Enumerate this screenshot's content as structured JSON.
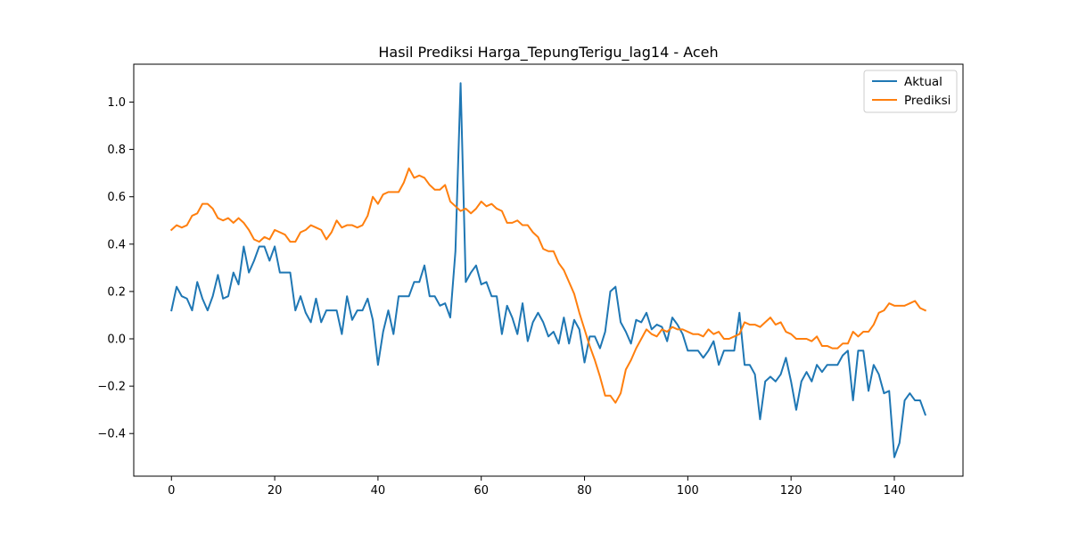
{
  "chart_data": {
    "type": "line",
    "title": "Hasil Prediksi Harga_TepungTerigu_lag14 - Aceh",
    "xlabel": "",
    "ylabel": "",
    "xlim": [
      -7.3,
      153.3
    ],
    "ylim": [
      -0.58,
      1.16
    ],
    "xticks": [
      0,
      20,
      40,
      60,
      80,
      100,
      120,
      140
    ],
    "yticks": [
      -0.4,
      -0.2,
      0.0,
      0.2,
      0.4,
      0.6,
      0.8,
      1.0
    ],
    "ytick_labels": [
      "−0.4",
      "−0.2",
      "0.0",
      "0.2",
      "0.4",
      "0.6",
      "0.8",
      "1.0"
    ],
    "grid": false,
    "legend_position": "top-right",
    "series": [
      {
        "name": "Aktual",
        "color": "#1f77b4",
        "values": [
          0.12,
          0.22,
          0.18,
          0.17,
          0.12,
          0.24,
          0.17,
          0.12,
          0.18,
          0.27,
          0.17,
          0.18,
          0.28,
          0.23,
          0.39,
          0.28,
          0.33,
          0.39,
          0.39,
          0.33,
          0.39,
          0.28,
          0.28,
          0.28,
          0.12,
          0.18,
          0.11,
          0.07,
          0.17,
          0.07,
          0.12,
          0.12,
          0.12,
          0.02,
          0.18,
          0.08,
          0.12,
          0.12,
          0.17,
          0.08,
          -0.11,
          0.03,
          0.12,
          0.02,
          0.18,
          0.18,
          0.18,
          0.24,
          0.24,
          0.31,
          0.18,
          0.18,
          0.14,
          0.15,
          0.09,
          0.37,
          1.08,
          0.24,
          0.28,
          0.31,
          0.23,
          0.24,
          0.18,
          0.18,
          0.02,
          0.14,
          0.09,
          0.02,
          0.15,
          -0.01,
          0.07,
          0.11,
          0.07,
          0.01,
          0.03,
          -0.02,
          0.09,
          -0.02,
          0.08,
          0.04,
          -0.1,
          0.01,
          0.01,
          -0.04,
          0.03,
          0.2,
          0.22,
          0.07,
          0.03,
          -0.02,
          0.08,
          0.07,
          0.11,
          0.04,
          0.06,
          0.05,
          -0.01,
          0.09,
          0.06,
          0.02,
          -0.05,
          -0.05,
          -0.05,
          -0.08,
          -0.05,
          -0.01,
          -0.11,
          -0.05,
          -0.05,
          -0.05,
          0.11,
          -0.11,
          -0.11,
          -0.15,
          -0.34,
          -0.18,
          -0.16,
          -0.18,
          -0.15,
          -0.08,
          -0.18,
          -0.3,
          -0.18,
          -0.14,
          -0.18,
          -0.11,
          -0.14,
          -0.11,
          -0.11,
          -0.11,
          -0.07,
          -0.05,
          -0.26,
          -0.05,
          -0.05,
          -0.22,
          -0.11,
          -0.15,
          -0.23,
          -0.22,
          -0.5,
          -0.44,
          -0.26,
          -0.23,
          -0.26,
          -0.26,
          -0.32
        ]
      },
      {
        "name": "Prediksi",
        "color": "#ff7f0e",
        "values": [
          0.46,
          0.48,
          0.47,
          0.48,
          0.52,
          0.53,
          0.57,
          0.57,
          0.55,
          0.51,
          0.5,
          0.51,
          0.49,
          0.51,
          0.49,
          0.46,
          0.42,
          0.41,
          0.43,
          0.42,
          0.46,
          0.45,
          0.44,
          0.41,
          0.41,
          0.45,
          0.46,
          0.48,
          0.47,
          0.46,
          0.42,
          0.45,
          0.5,
          0.47,
          0.48,
          0.48,
          0.47,
          0.48,
          0.52,
          0.6,
          0.57,
          0.61,
          0.62,
          0.62,
          0.62,
          0.66,
          0.72,
          0.68,
          0.69,
          0.68,
          0.65,
          0.63,
          0.63,
          0.65,
          0.58,
          0.56,
          0.54,
          0.55,
          0.53,
          0.55,
          0.58,
          0.56,
          0.57,
          0.55,
          0.54,
          0.49,
          0.49,
          0.5,
          0.48,
          0.48,
          0.45,
          0.43,
          0.38,
          0.37,
          0.37,
          0.32,
          0.29,
          0.24,
          0.19,
          0.11,
          0.04,
          -0.03,
          -0.09,
          -0.16,
          -0.24,
          -0.24,
          -0.27,
          -0.23,
          -0.13,
          -0.09,
          -0.04,
          0.0,
          0.04,
          0.02,
          0.01,
          0.04,
          0.03,
          0.05,
          0.04,
          0.04,
          0.03,
          0.02,
          0.02,
          0.01,
          0.04,
          0.02,
          0.03,
          0.0,
          0.0,
          0.01,
          0.02,
          0.07,
          0.06,
          0.06,
          0.05,
          0.07,
          0.09,
          0.06,
          0.07,
          0.03,
          0.02,
          0.0,
          0.0,
          0.0,
          -0.01,
          0.01,
          -0.03,
          -0.03,
          -0.04,
          -0.04,
          -0.02,
          -0.02,
          0.03,
          0.01,
          0.03,
          0.03,
          0.06,
          0.11,
          0.12,
          0.15,
          0.14,
          0.14,
          0.14,
          0.15,
          0.16,
          0.13,
          0.12
        ]
      }
    ]
  }
}
